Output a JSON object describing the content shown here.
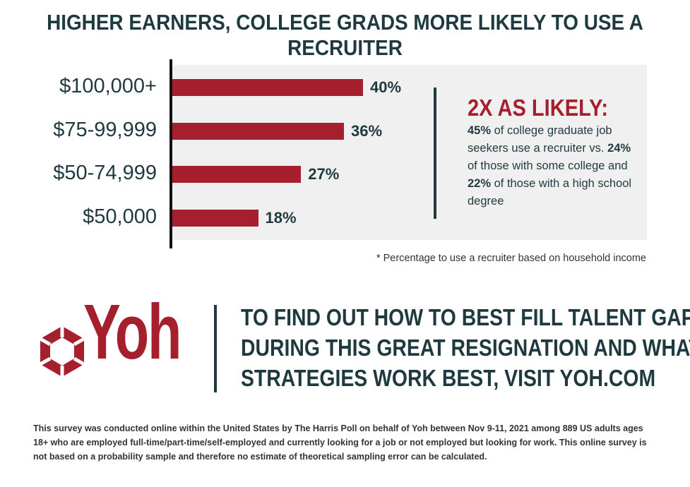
{
  "chart_data": {
    "type": "bar",
    "orientation": "horizontal",
    "title": "HIGHER EARNERS, COLLEGE GRADS MORE LIKELY TO USE A RECRUITER",
    "categories": [
      "$100,000+",
      "$75-99,999",
      "$50-74,999",
      "$50,000"
    ],
    "values": [
      40,
      36,
      27,
      18
    ],
    "value_labels": [
      "40%",
      "36%",
      "27%",
      "18%"
    ],
    "xlim": [
      0,
      100
    ],
    "grid": false,
    "legend": "none",
    "colors": {
      "bar": "#a51f2d",
      "text": "#1f3a3f",
      "panel": "#f0f0f0"
    }
  },
  "callout": {
    "heading": "2X AS LIKELY:",
    "v1": "45%",
    "t1": " of college graduate job seekers use a recruiter vs. ",
    "v2": "24%",
    "t2": " of those with some college and ",
    "v3": "22%",
    "t3": " of those with a high school degree"
  },
  "footnote": "* Percentage to use a recruiter based on household income",
  "logo": {
    "text": "Yoh",
    "icon": "hexagon-logo-icon"
  },
  "cta": {
    "line1": "TO FIND OUT HOW TO BEST FILL TALENT GAPS",
    "line2": "DURING THIS GREAT RESIGNATION AND WHAT",
    "line3": "STRATEGIES WORK BEST, VISIT YOH.COM"
  },
  "disclaimer": "This survey was conducted online within the United States by The Harris Poll on behalf of Yoh between Nov 9-11, 2021 among 889 US adults ages 18+ who are employed full-time/part-time/self-employed and currently looking for a job or not employed but looking for work. This online survey is not based on a probability sample and therefore no estimate of theoretical sampling error can be calculated."
}
